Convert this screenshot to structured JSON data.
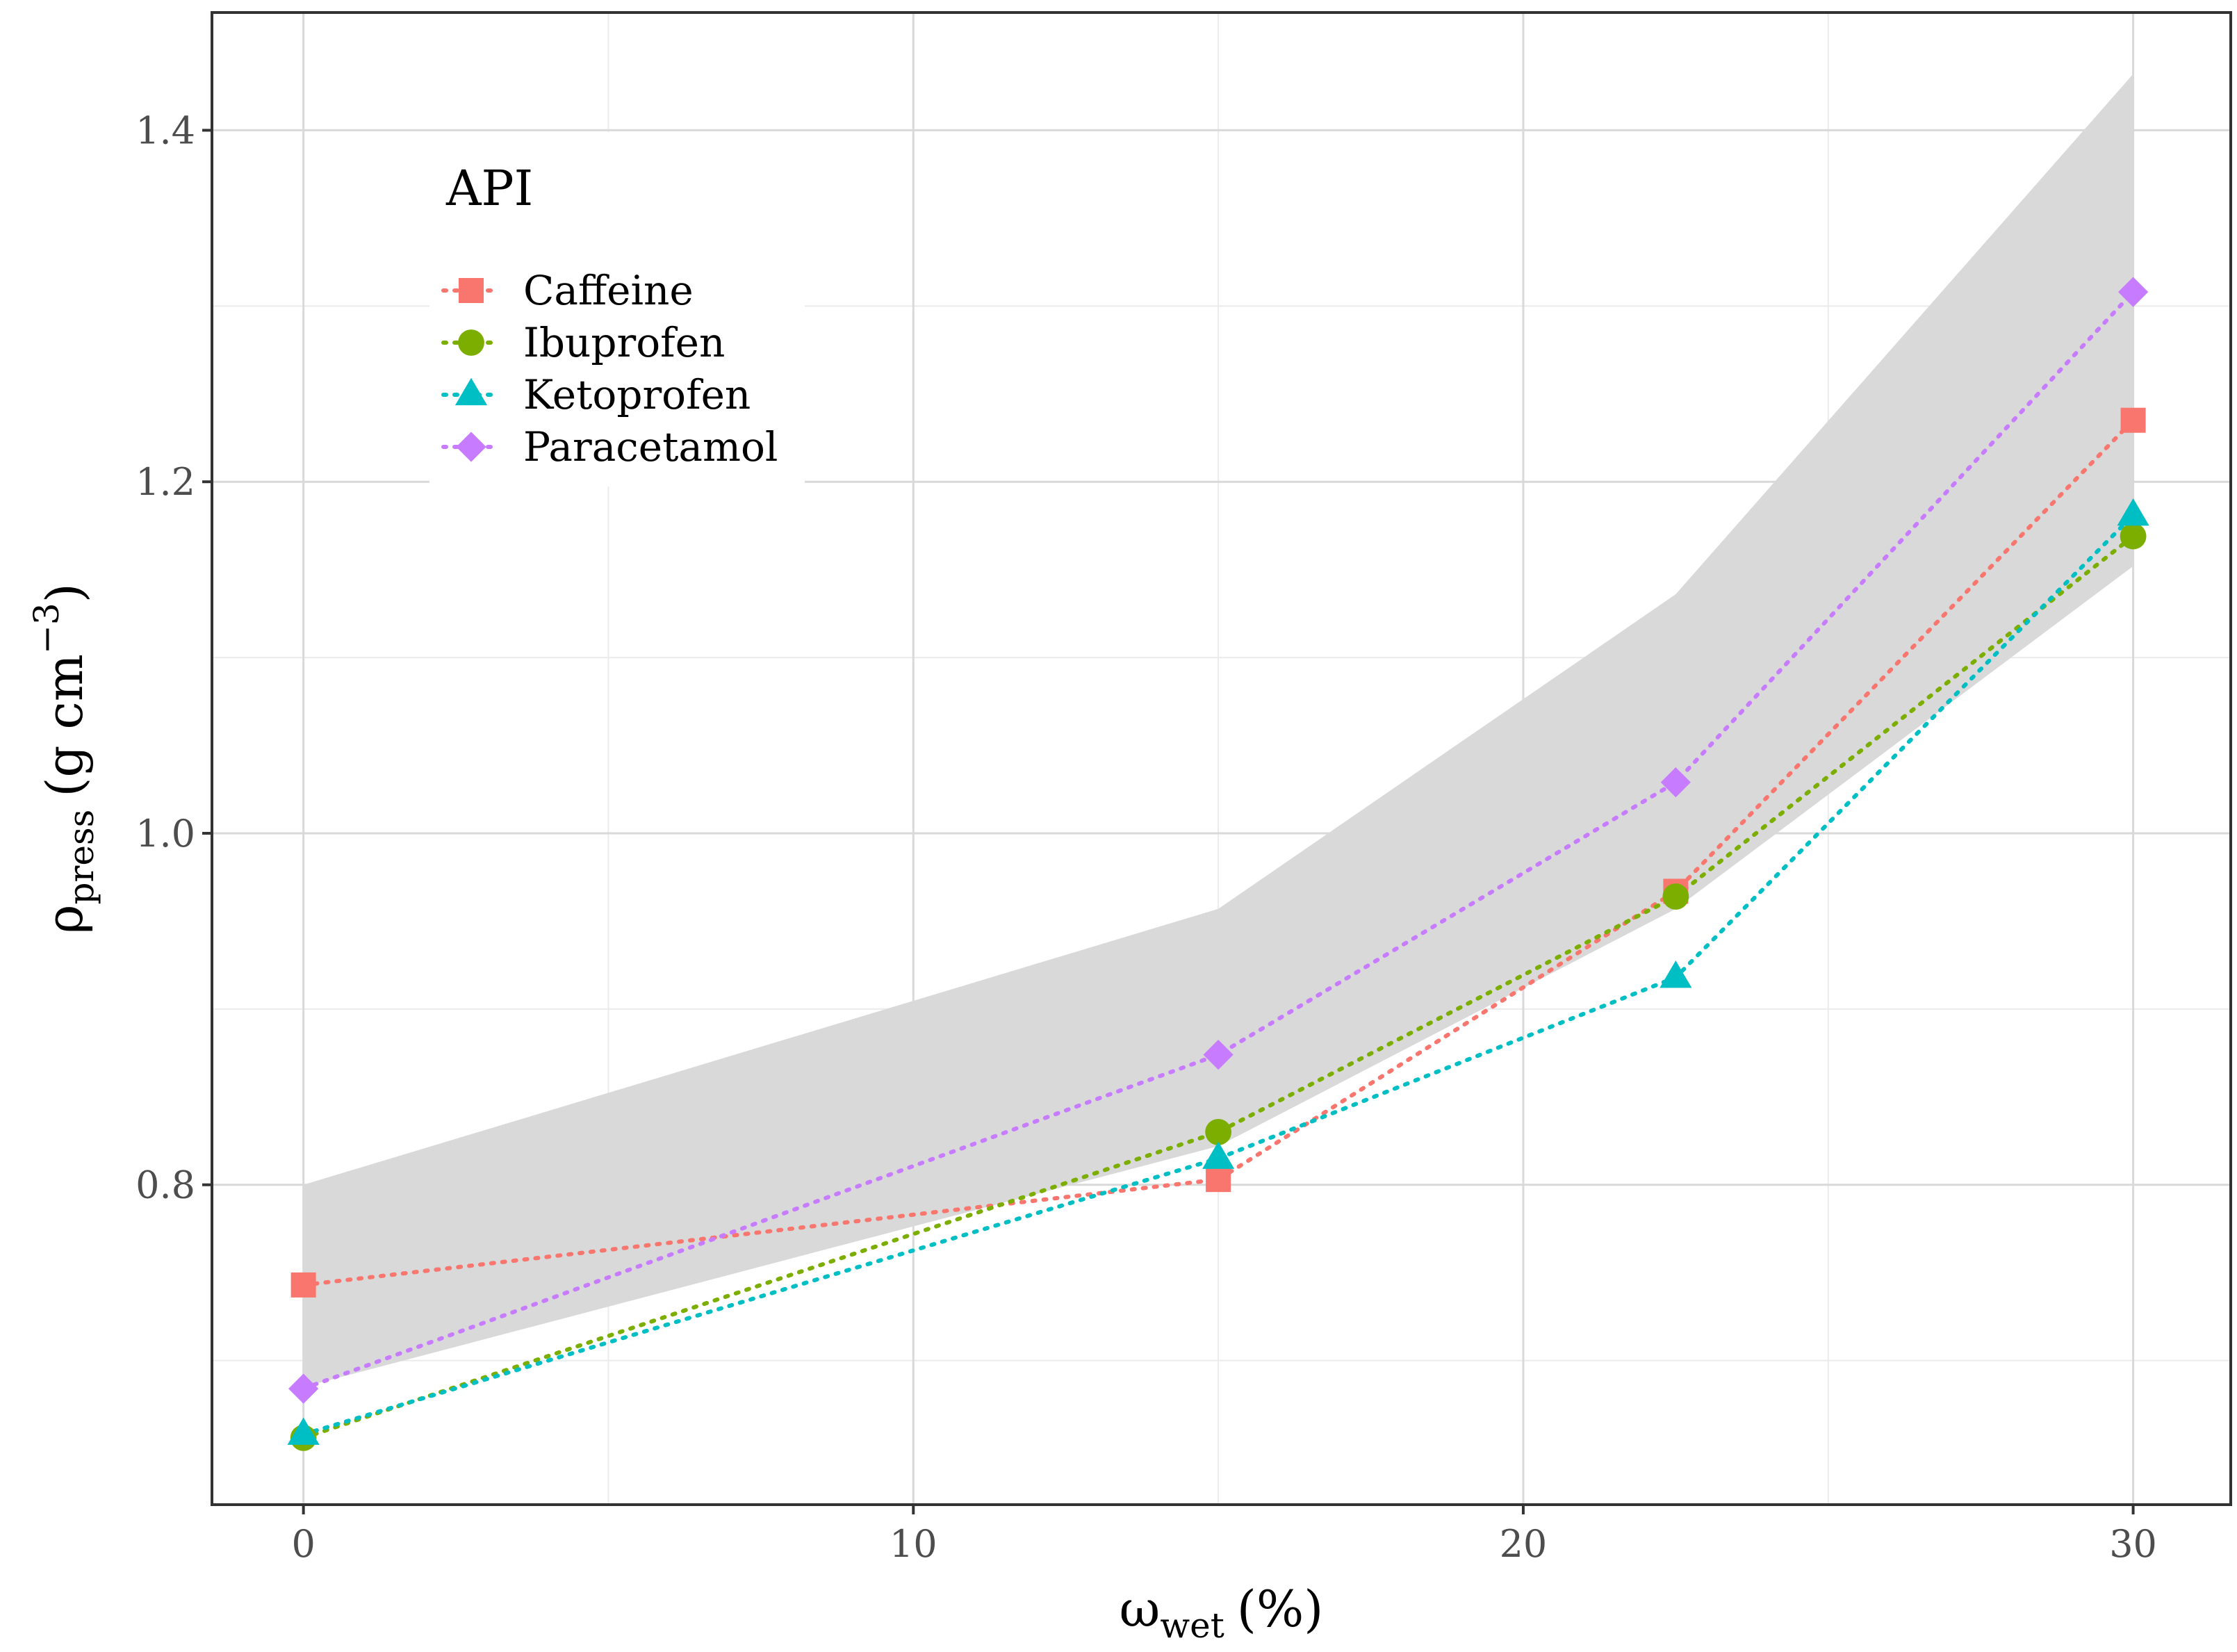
{
  "chart_data": {
    "type": "line",
    "title": "",
    "xlabel": {
      "main": "ω",
      "sub": "wet",
      "unit": "(%)"
    },
    "ylabel": {
      "main": "ρ",
      "sub": "press",
      "unit_open": "(g cm",
      "unit_sup": "−3",
      "unit_close": ")"
    },
    "xlim": [
      -1.5,
      31.6
    ],
    "ylim": [
      0.618,
      1.467
    ],
    "x_ticks": [
      0,
      10,
      20,
      30
    ],
    "x_tick_labels": [
      "0",
      "10",
      "20",
      "30"
    ],
    "x_minor_ticks": [
      5,
      15,
      25
    ],
    "y_ticks": [
      0.8,
      1.0,
      1.2,
      1.4
    ],
    "y_tick_labels": [
      "0.8",
      "1.0",
      "1.2",
      "1.4"
    ],
    "y_minor_ticks": [
      0.7,
      0.9,
      1.1,
      1.3
    ],
    "grid": true,
    "legend_placement": "top-left",
    "legend_title": "API",
    "band": {
      "x": [
        0,
        15,
        22.5,
        30
      ],
      "upper": [
        0.8,
        0.957,
        1.136,
        1.432
      ],
      "lower": [
        0.685,
        0.822,
        0.957,
        1.152
      ]
    },
    "series": [
      {
        "name": "Caffeine",
        "marker": "square",
        "color": "#F8766D",
        "x": [
          0,
          15,
          22.5,
          30
        ],
        "values": [
          0.743,
          0.803,
          0.967,
          1.235
        ]
      },
      {
        "name": "Ibuprofen",
        "marker": "circle",
        "color": "#7CAE00",
        "x": [
          0,
          15,
          22.5,
          30
        ],
        "values": [
          0.656,
          0.83,
          0.964,
          1.169
        ]
      },
      {
        "name": "Ketoprofen",
        "marker": "triangle",
        "color": "#00BFC4",
        "x": [
          0,
          15,
          22.5,
          30
        ],
        "values": [
          0.658,
          0.815,
          0.918,
          1.181
        ]
      },
      {
        "name": "Paracetamol",
        "marker": "diamond",
        "color": "#C77CFF",
        "x": [
          0,
          15,
          22.5,
          30
        ],
        "values": [
          0.684,
          0.874,
          1.029,
          1.308
        ]
      }
    ]
  }
}
